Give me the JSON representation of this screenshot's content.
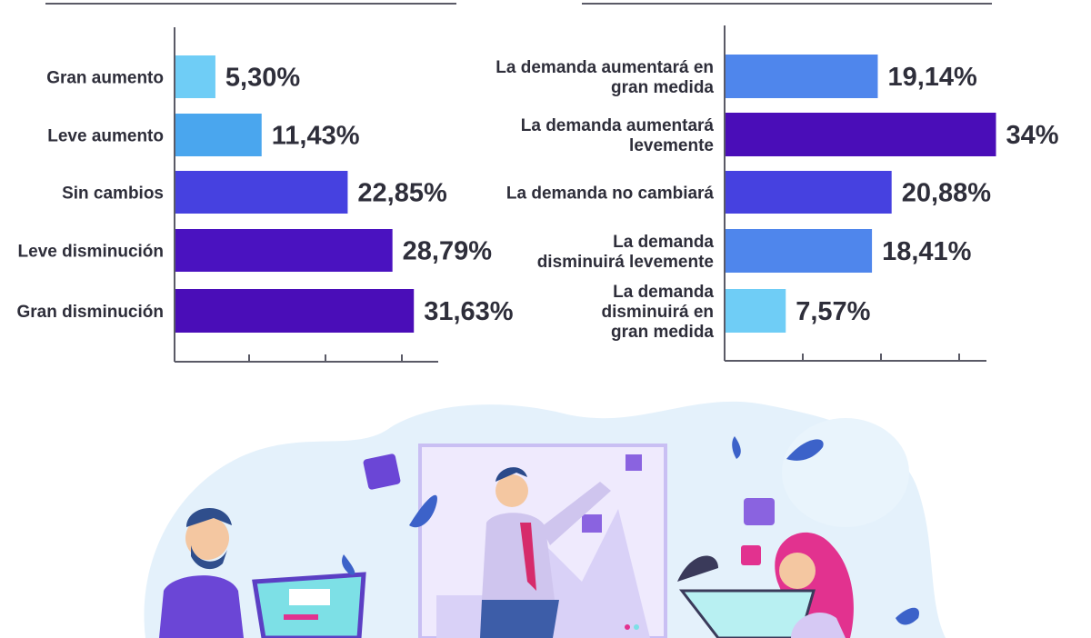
{
  "chart_data": [
    {
      "type": "bar",
      "orientation": "horizontal",
      "categories": [
        "Gran aumento",
        "Leve aumento",
        "Sin cambios",
        "Leve disminución",
        "Gran disminución"
      ],
      "values": [
        5.3,
        11.43,
        22.85,
        28.79,
        31.63
      ],
      "value_labels": [
        "5,30%",
        "11,43%",
        "22,85%",
        "28,79%",
        "31,63%"
      ],
      "colors": [
        "#6fcdf6",
        "#4aa6ee",
        "#4641e0",
        "#4a12c0",
        "#4a0db8"
      ],
      "xlim": [
        0,
        35
      ],
      "grid": false
    },
    {
      "type": "bar",
      "orientation": "horizontal",
      "categories": [
        [
          "La demanda aumentará en",
          "gran medida"
        ],
        [
          "La demanda aumentará",
          "levemente"
        ],
        [
          "La demanda no cambiará"
        ],
        [
          "La demanda",
          "disminuirá levemente"
        ],
        [
          "La demanda",
          "disminuirá en",
          "gran medida"
        ]
      ],
      "values": [
        19.14,
        34,
        20.88,
        18.41,
        7.57
      ],
      "value_labels": [
        "19,14%",
        "34%",
        "20,88%",
        "18,41%",
        "7,57%"
      ],
      "colors": [
        "#4f86ec",
        "#4a0db8",
        "#4641e0",
        "#4f86ec",
        "#6fcdf6"
      ],
      "xlim": [
        0,
        33
      ],
      "grid": false
    }
  ],
  "illustration": {
    "description_icons": [
      "man-with-laptop-icon",
      "man-at-whiteboard-icon",
      "woman-at-tablet-icon",
      "leaf-icon",
      "sticky-note-icon"
    ],
    "colors": {
      "blob": "#e3f1fb",
      "board": "#cfc6f5",
      "purple": "#6b46d6",
      "teal": "#7de0e6",
      "pink": "#e2328f"
    }
  }
}
